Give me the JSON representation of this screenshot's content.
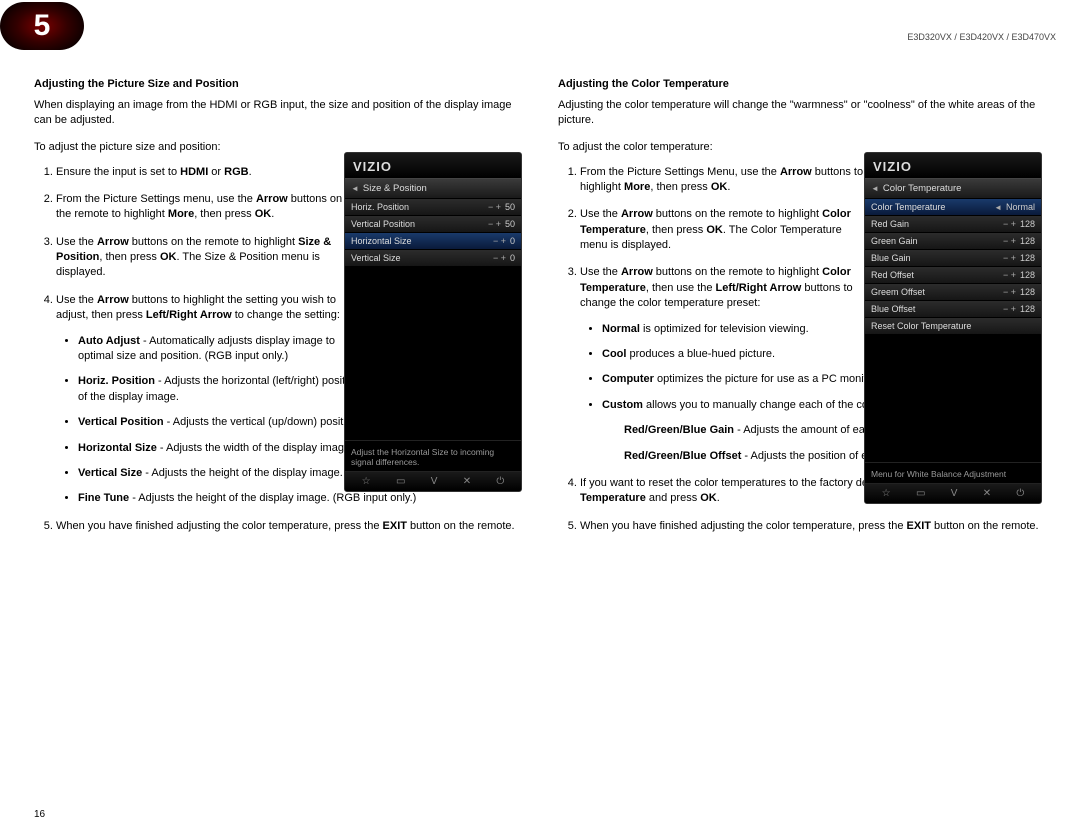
{
  "header": {
    "chapter": "5",
    "models": "E3D320VX / E3D420VX / E3D470VX"
  },
  "left": {
    "title": "Adjusting the Picture Size and Position",
    "intro": "When displaying an image from the HDMI or RGB input, the size and position of the display image can be adjusted.",
    "leadin": "To adjust the picture size and position:",
    "s1a": "Ensure the input is set to ",
    "s1b": "HDMI",
    "s1c": " or ",
    "s1d": "RGB",
    "s1e": ".",
    "s2a": "From the Picture Settings menu, use the ",
    "s2b": "Arrow",
    "s2c": " buttons on the remote to highlight ",
    "s2d": "More",
    "s2e": ", then press ",
    "s2f": "OK",
    "s2g": ".",
    "s3a": "Use the ",
    "s3b": "Arrow",
    "s3c": " buttons on the remote to highlight ",
    "s3d": "Size & Position",
    "s3e": ", then press ",
    "s3f": "OK",
    "s3g": ". The Size & Position menu is displayed.",
    "s4a": "Use the ",
    "s4b": "Arrow",
    "s4c": " buttons to highlight the setting you wish to adjust, then press ",
    "s4d": "Left/Right Arrow",
    "s4e": " to change the setting:",
    "b1a": "Auto Adjust",
    "b1b": " - Automatically adjusts display image to optimal size and position. (RGB input only.)",
    "b2a": "Horiz. Position",
    "b2b": " - Adjusts the horizontal (left/right) position of the display image.",
    "b3a": "Vertical Position",
    "b3b": " - Adjusts the vertical (up/down) position of the display image.",
    "b4a": "Horizontal Size",
    "b4b": " - Adjusts the width of the display image.",
    "b5a": "Vertical Size",
    "b5b": " - Adjusts the height of the display image.",
    "b6a": "Fine Tune",
    "b6b": " - Adjusts the height of the display image. (RGB input only.)",
    "s5a": "When you have finished adjusting the color temperature, press the ",
    "s5b": "EXIT",
    "s5c": " button on the remote."
  },
  "right": {
    "title": "Adjusting the Color Temperature",
    "intro": "Adjusting the color temperature will change the \"warmness\" or \"coolness\" of the white areas of the picture.",
    "leadin": "To adjust the color temperature:",
    "s1a": "From the Picture Settings Menu, use the ",
    "s1b": "Arrow",
    "s1c": " buttons to highlight ",
    "s1d": "More",
    "s1e": ", then press ",
    "s1f": "OK",
    "s1g": ".",
    "s2a": "Use the ",
    "s2b": "Arrow",
    "s2c": " buttons on the remote to highlight ",
    "s2d": "Color Temperature",
    "s2e": ", then press ",
    "s2f": "OK",
    "s2g": ". The Color Temperature menu is displayed.",
    "s3a": "Use the ",
    "s3b": "Arrow",
    "s3c": " buttons on the remote to highlight ",
    "s3d": "Color Temperature",
    "s3e": ", then use the ",
    "s3f": "Left/Right Arrow",
    "s3g": " buttons to change the color temperature preset:",
    "b1a": "Normal",
    "b1b": " is optimized for television viewing.",
    "b2a": "Cool",
    "b2b": " produces a blue-hued picture.",
    "b3a": "Computer",
    "b3b": " optimizes the picture for use as a PC monitor.",
    "b4a": "Custom",
    "b4b": " allows you to manually change each of the color temperature settings:",
    "sub1a": "Red/Green/Blue Gain",
    "sub1b": " - Adjusts the amount of each color in the display.",
    "sub2a": "Red/Green/Blue Offset",
    "sub2b": " - Adjusts the position of each color in the display.",
    "s4a": "If you want to reset the color temperatures to the factory default settings, highlight ",
    "s4b": "Reset Color Temperature",
    "s4c": " and press ",
    "s4d": "OK",
    "s4e": ".",
    "s5a": "When you have finished adjusting the color temperature, press the ",
    "s5b": "EXIT",
    "s5c": " button on the remote."
  },
  "osd1": {
    "brand": "VIZIO",
    "crumb": "Size & Position",
    "r1l": "Horiz. Position",
    "r1v": "50",
    "r2l": "Vertical Position",
    "r2v": "50",
    "r3l": "Horizontal Size",
    "r3v": "0",
    "r4l": "Vertical Size",
    "r4v": "0",
    "help": "Adjust the Horizontal Size to incoming signal differences."
  },
  "osd2": {
    "brand": "VIZIO",
    "crumb": "Color Temperature",
    "r1l": "Color Temperature",
    "r1v": "Normal",
    "r2l": "Red Gain",
    "r2v": "128",
    "r3l": "Green Gain",
    "r3v": "128",
    "r4l": "Blue Gain",
    "r4v": "128",
    "r5l": "Red Offset",
    "r5v": "128",
    "r6l": "Greem Offset",
    "r6v": "128",
    "r7l": "Blue Offset",
    "r7v": "128",
    "r8l": "Reset Color Temperature",
    "help": "Menu for White Balance Adjustment"
  },
  "pagenum": "16"
}
